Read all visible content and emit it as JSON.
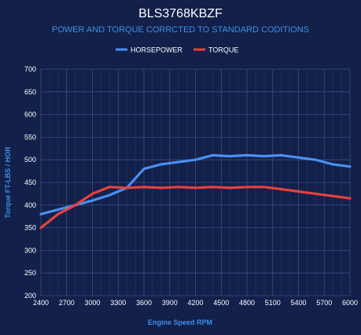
{
  "chart_data": {
    "type": "line",
    "title": "BLS3768KBZF",
    "subtitle": "POWER AND TORQUE CORRCTED TO STANDARD CODITIONS",
    "xlabel": "Engine Speed RPM",
    "ylabel": "Torque FT-LBS / HOR",
    "xlim": [
      2400,
      6000
    ],
    "ylim": [
      200,
      700
    ],
    "x_ticks": [
      "2400",
      "2700",
      "3000",
      "3300",
      "3600",
      "3900",
      "4200",
      "4500",
      "4800",
      "5100",
      "5400",
      "5700",
      "6000"
    ],
    "y_ticks": [
      "700",
      "650",
      "600",
      "550",
      "500",
      "450",
      "400",
      "350",
      "300",
      "250",
      "200"
    ],
    "grid": true,
    "legend_position": "top-center",
    "series": [
      {
        "name": "HORSEPOWER",
        "color": "#4a8ff0",
        "points": [
          [
            2400,
            380
          ],
          [
            2600,
            390
          ],
          [
            2800,
            400
          ],
          [
            3000,
            410
          ],
          [
            3200,
            422
          ],
          [
            3400,
            438
          ],
          [
            3600,
            480
          ],
          [
            3800,
            490
          ],
          [
            4000,
            495
          ],
          [
            4200,
            500
          ],
          [
            4400,
            510
          ],
          [
            4600,
            508
          ],
          [
            4800,
            510
          ],
          [
            5000,
            508
          ],
          [
            5200,
            510
          ],
          [
            5400,
            505
          ],
          [
            5600,
            500
          ],
          [
            5800,
            490
          ],
          [
            6000,
            485
          ]
        ]
      },
      {
        "name": "TORQUE",
        "color": "#e8413c",
        "points": [
          [
            2400,
            350
          ],
          [
            2600,
            380
          ],
          [
            2800,
            400
          ],
          [
            3000,
            425
          ],
          [
            3200,
            440
          ],
          [
            3400,
            438
          ],
          [
            3600,
            440
          ],
          [
            3800,
            438
          ],
          [
            4000,
            440
          ],
          [
            4200,
            438
          ],
          [
            4400,
            440
          ],
          [
            4600,
            438
          ],
          [
            4800,
            440
          ],
          [
            5000,
            440
          ],
          [
            5200,
            435
          ],
          [
            5400,
            430
          ],
          [
            5600,
            425
          ],
          [
            5800,
            420
          ],
          [
            6000,
            415
          ]
        ]
      }
    ]
  }
}
